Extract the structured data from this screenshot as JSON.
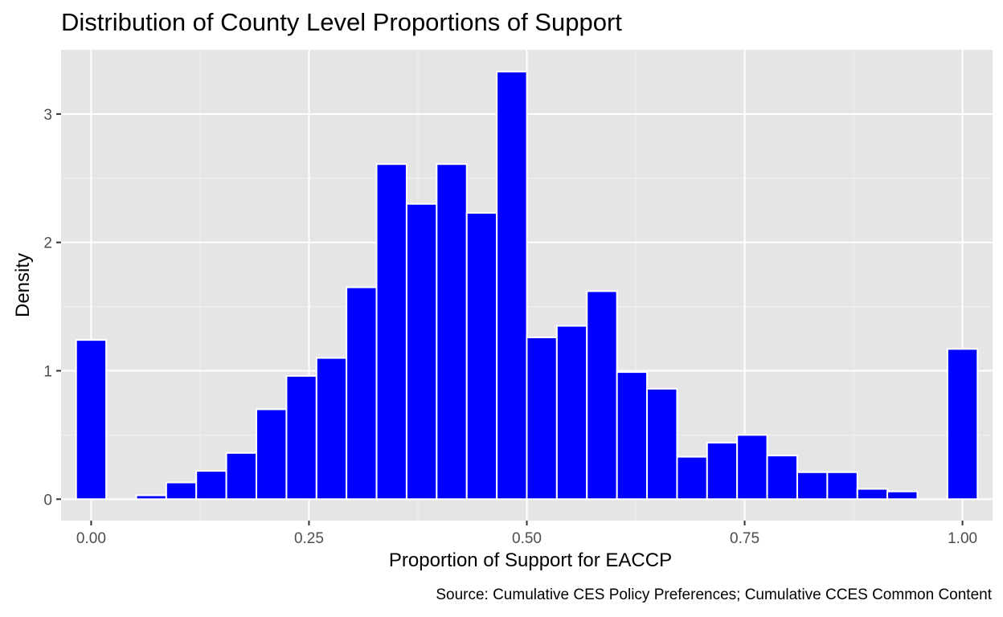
{
  "title": "Distribution of County Level Proportions of Support",
  "caption": "Source: Cumulative CES Policy Preferences; Cumulative CCES Common Content",
  "chart_data": {
    "type": "bar",
    "subtype": "histogram",
    "xlabel": "Proportion of Support for EACCP",
    "ylabel": "Density",
    "xlim": [
      -0.0345,
      1.0345
    ],
    "ylim": [
      -0.167,
      3.5
    ],
    "x_ticks": [
      0,
      0.25,
      0.5,
      0.75,
      1
    ],
    "x_tick_labels": [
      "0.00",
      "0.25",
      "0.50",
      "0.75",
      "1.00"
    ],
    "y_ticks": [
      0,
      1,
      2,
      3
    ],
    "y_tick_labels": [
      "0",
      "1",
      "2",
      "3"
    ],
    "bin_width": 0.0345,
    "bin_centers": [
      0.0,
      0.0345,
      0.069,
      0.1034,
      0.1379,
      0.1724,
      0.2069,
      0.2414,
      0.2759,
      0.3103,
      0.3448,
      0.3793,
      0.4138,
      0.4483,
      0.4828,
      0.5172,
      0.5517,
      0.5862,
      0.6207,
      0.6552,
      0.6897,
      0.7241,
      0.7586,
      0.7931,
      0.8276,
      0.8621,
      0.8966,
      0.931,
      0.9655,
      1.0
    ],
    "values": [
      1.24,
      0.0,
      0.03,
      0.13,
      0.22,
      0.36,
      0.7,
      0.96,
      1.1,
      1.65,
      2.61,
      2.3,
      2.61,
      2.23,
      3.33,
      1.26,
      1.35,
      1.62,
      0.99,
      0.86,
      0.33,
      0.44,
      0.5,
      0.34,
      0.21,
      0.21,
      0.08,
      0.06,
      0.0,
      1.17
    ],
    "bar_color": "#0000FF",
    "bar_outline": "#FFFFFF",
    "panel_background": "#E5E5E5",
    "grid": true,
    "legend": "none"
  }
}
